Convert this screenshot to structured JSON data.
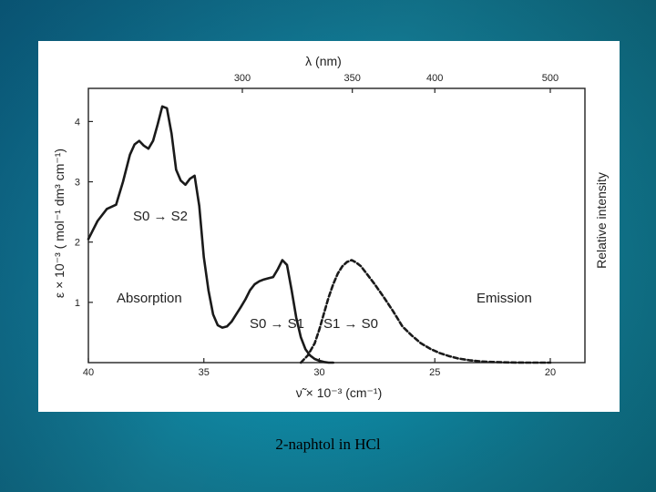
{
  "caption": "2-naphtol in HCl",
  "chart_data": {
    "type": "line",
    "xlabel_bottom": "ν̃ × 10⁻³ (cm⁻¹)",
    "xlabel_top": "λ (nm)",
    "ylabel_left": "ε × 10⁻³ ( mol⁻¹ dm³ cm⁻¹)",
    "ylabel_right": "Relative intensity",
    "xlim": [
      40,
      18.5
    ],
    "ylim": [
      0,
      4.55
    ],
    "x_ticks_bottom": [
      40,
      35,
      30,
      25,
      20
    ],
    "x_ticks_top_nm": [
      300,
      350,
      400,
      500
    ],
    "y_ticks": [
      1,
      2,
      3,
      4
    ],
    "annotations": {
      "s0s2": "S0 → S2",
      "absorption": "Absorption",
      "s0s1": "S0 → S1",
      "s1s0": "S1 → S0",
      "emission": "Emission"
    },
    "series": [
      {
        "name": "Absorption",
        "style": "solid",
        "x": [
          40,
          39.6,
          39.2,
          38.8,
          38.5,
          38.2,
          38.0,
          37.8,
          37.6,
          37.4,
          37.2,
          37.0,
          36.8,
          36.6,
          36.4,
          36.2,
          36.0,
          35.8,
          35.6,
          35.4,
          35.2,
          35.0,
          34.8,
          34.6,
          34.4,
          34.2,
          34.0,
          33.8,
          33.6,
          33.4,
          33.2,
          33.0,
          32.8,
          32.6,
          32.4,
          32.2,
          32.0,
          31.8,
          31.6,
          31.4,
          31.2,
          31.0,
          30.8,
          30.6,
          30.4,
          30.2,
          30.0,
          29.8,
          29.6,
          29.4
        ],
        "y": [
          2.05,
          2.35,
          2.55,
          2.62,
          3.0,
          3.45,
          3.62,
          3.68,
          3.6,
          3.55,
          3.68,
          3.95,
          4.25,
          4.22,
          3.8,
          3.2,
          3.02,
          2.95,
          3.05,
          3.1,
          2.6,
          1.75,
          1.2,
          0.8,
          0.62,
          0.58,
          0.6,
          0.68,
          0.8,
          0.92,
          1.05,
          1.2,
          1.3,
          1.35,
          1.38,
          1.4,
          1.42,
          1.55,
          1.7,
          1.62,
          1.2,
          0.75,
          0.42,
          0.22,
          0.12,
          0.06,
          0.03,
          0.01,
          0.0,
          0.0
        ]
      },
      {
        "name": "Emission",
        "style": "dashed",
        "x": [
          30.8,
          30.5,
          30.2,
          30.0,
          29.8,
          29.6,
          29.4,
          29.2,
          29.0,
          28.8,
          28.6,
          28.4,
          28.2,
          28.0,
          27.6,
          27.2,
          26.8,
          26.4,
          26.0,
          25.6,
          25.2,
          24.8,
          24.4,
          24.0,
          23.5,
          23.0,
          22.5,
          22.0,
          21.5,
          21.0,
          20.5,
          20.0
        ],
        "y": [
          0.0,
          0.12,
          0.32,
          0.55,
          0.82,
          1.08,
          1.3,
          1.48,
          1.6,
          1.67,
          1.7,
          1.66,
          1.6,
          1.5,
          1.3,
          1.08,
          0.85,
          0.6,
          0.45,
          0.32,
          0.23,
          0.16,
          0.11,
          0.07,
          0.04,
          0.02,
          0.01,
          0.005,
          0.002,
          0.0,
          0.0,
          0.0
        ]
      }
    ]
  }
}
